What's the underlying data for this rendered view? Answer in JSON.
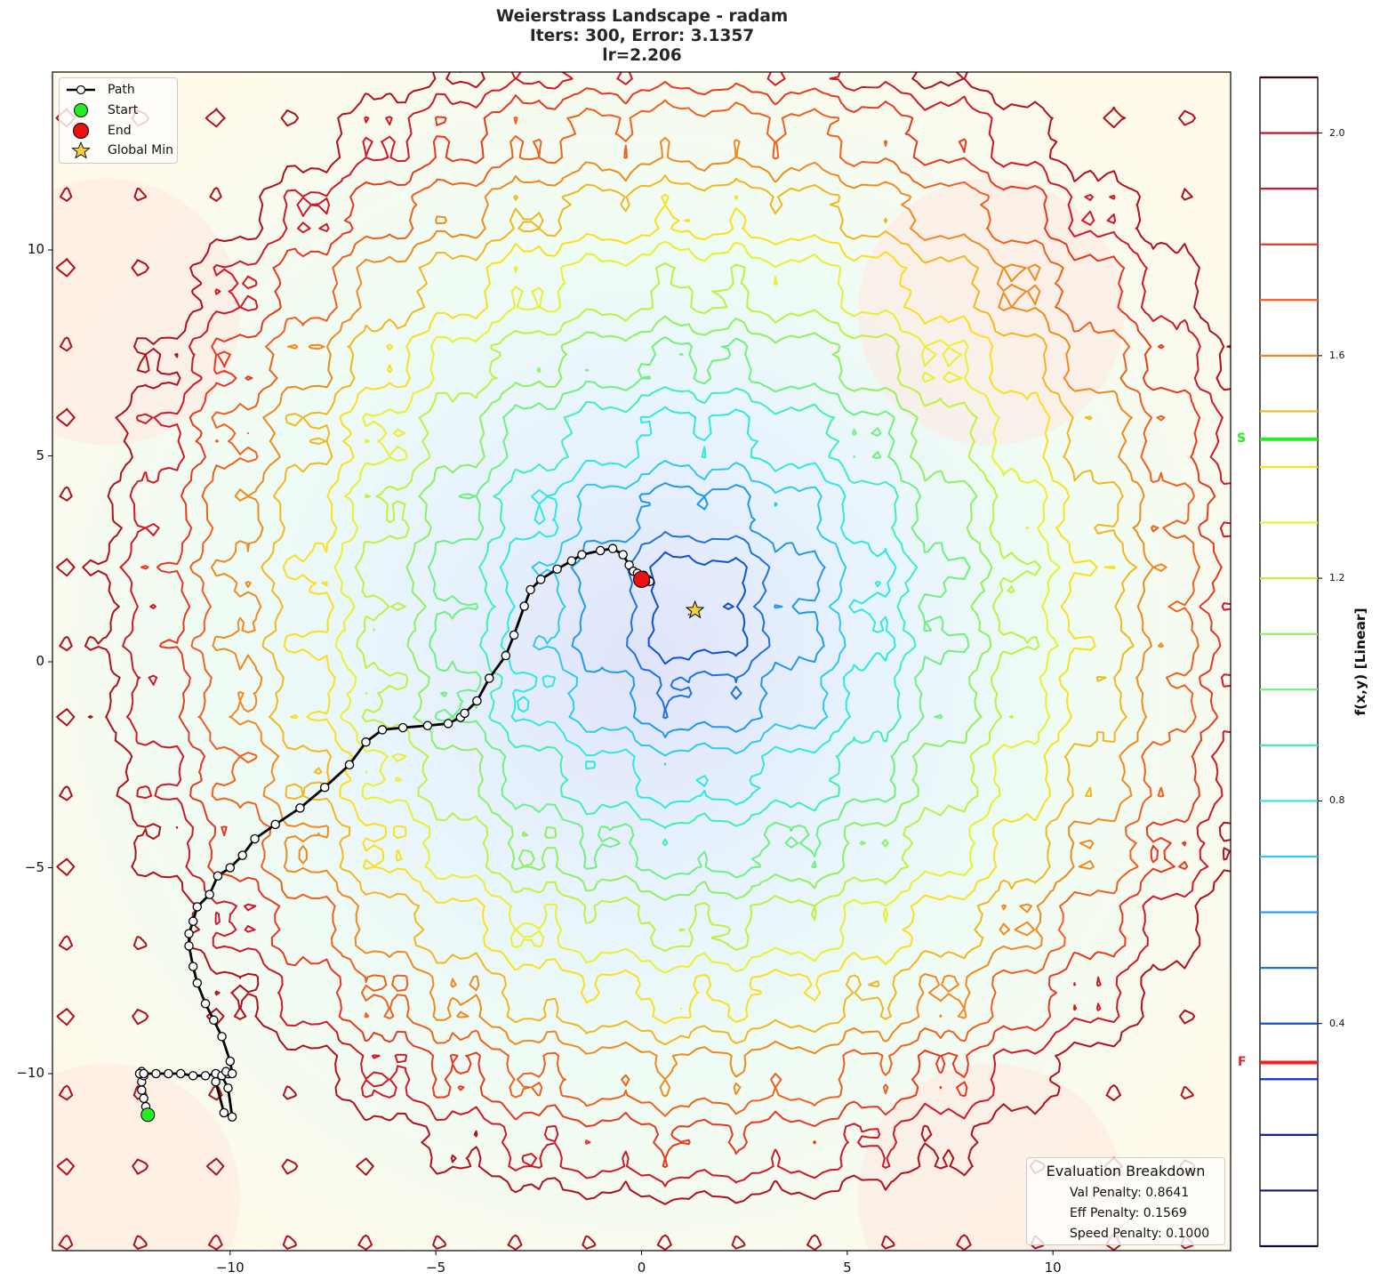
{
  "chart_data": {
    "type": "contour",
    "title": "Weierstrass Landscape - radam",
    "subtitle_lines": [
      "Iters: 300, Error: 3.1357",
      "lr=2.206"
    ],
    "xlabel": "",
    "ylabel": "",
    "xlim": [
      -14.3,
      14.3
    ],
    "ylim": [
      -14.3,
      14.3
    ],
    "xticks": [
      -10,
      -5,
      0,
      5,
      10
    ],
    "yticks": [
      -10,
      -5,
      0,
      5,
      10
    ],
    "xtick_labels": [
      "−10",
      "−5",
      "0",
      "5",
      "10"
    ],
    "ytick_labels": [
      "10",
      "5",
      "0",
      "−5",
      "−10"
    ],
    "grid": false,
    "colorbar": {
      "label": "f(x,y) [Linear]",
      "range": [
        0.0,
        2.1
      ],
      "ticks": [
        2.0,
        1.6,
        1.2,
        0.8,
        0.4
      ],
      "tick_labels": [
        "2.0",
        "1.6",
        "1.2",
        "0.8",
        "0.4"
      ],
      "levels": [
        2.1,
        2.0,
        1.9,
        1.8,
        1.7,
        1.6,
        1.5,
        1.4,
        1.3,
        1.2,
        1.1,
        1.0,
        0.9,
        0.8,
        0.7,
        0.6,
        0.5,
        0.4,
        0.3,
        0.2,
        0.1,
        0.0
      ],
      "level_colors": [
        "#3a0a0a",
        "#b01020",
        "#d0182a",
        "#e83820",
        "#f06020",
        "#f08a20",
        "#f0b820",
        "#f8e020",
        "#e8f030",
        "#c0f040",
        "#90f060",
        "#70f080",
        "#40f0b0",
        "#30e8e0",
        "#30c8f0",
        "#2098f0",
        "#2070e0",
        "#1050d8",
        "#1030c0",
        "#1020a0",
        "#101880",
        "#0a0a40"
      ],
      "start_marker": {
        "label": "S",
        "value": 1.45,
        "color": "#22ee22"
      },
      "final_marker": {
        "label": "F",
        "value": 0.33,
        "color": "#ee2222"
      }
    },
    "legend": {
      "position": "upper left",
      "entries": [
        "Path",
        "Start",
        "End",
        "Global Min"
      ]
    },
    "start": {
      "x": -12.0,
      "y": -11.0
    },
    "end": {
      "x": 0.0,
      "y": 2.0
    },
    "global_min": {
      "x": 1.3,
      "y": 1.25
    },
    "path": {
      "x": [
        -12.0,
        -12.05,
        -12.1,
        -12.15,
        -12.15,
        -12.1,
        -12.1,
        -12.15,
        -12.2,
        -12.1,
        -11.8,
        -11.5,
        -11.2,
        -10.9,
        -10.6,
        -10.35,
        -10.2,
        -10.05,
        -9.95,
        -10.15,
        -10.35,
        -10.05,
        -10.1,
        -9.95,
        -10.0,
        -10.2,
        -10.4,
        -10.6,
        -10.8,
        -10.9,
        -11.0,
        -11.0,
        -10.9,
        -10.8,
        -10.5,
        -10.3,
        -10.0,
        -9.7,
        -9.4,
        -8.9,
        -8.3,
        -7.7,
        -7.1,
        -6.7,
        -6.3,
        -5.8,
        -5.2,
        -4.7,
        -4.4,
        -4.3,
        -4.0,
        -3.7,
        -3.3,
        -3.1,
        -2.85,
        -2.7,
        -2.45,
        -2.05,
        -1.7,
        -1.45,
        -1.0,
        -0.7,
        -0.45,
        -0.3,
        -0.2,
        -0.1,
        0.05,
        0.15,
        0.2,
        0.1,
        0.0
      ],
      "y": [
        -11.0,
        -10.8,
        -10.6,
        -10.4,
        -10.2,
        -10.05,
        -10.0,
        -9.95,
        -10.0,
        -10.0,
        -10.0,
        -10.0,
        -10.0,
        -10.05,
        -10.05,
        -10.0,
        -10.05,
        -10.35,
        -11.05,
        -10.95,
        -10.2,
        -10.0,
        -9.95,
        -10.0,
        -9.7,
        -9.1,
        -8.7,
        -8.3,
        -7.8,
        -7.4,
        -6.9,
        -6.6,
        -6.3,
        -5.95,
        -5.65,
        -5.2,
        -5.0,
        -4.7,
        -4.3,
        -3.95,
        -3.55,
        -3.05,
        -2.5,
        -1.95,
        -1.65,
        -1.6,
        -1.55,
        -1.5,
        -1.35,
        -1.25,
        -0.95,
        -0.4,
        0.15,
        0.65,
        1.35,
        1.75,
        2.0,
        2.25,
        2.45,
        2.6,
        2.7,
        2.75,
        2.6,
        2.35,
        2.2,
        2.15,
        2.1,
        2.0,
        1.95,
        1.95,
        2.0
      ]
    }
  },
  "legend": {
    "path_label": "Path",
    "start_label": "Start",
    "end_label": "End",
    "globalmin_label": "Global Min"
  },
  "eval_box": {
    "heading": "Evaluation Breakdown",
    "val_penalty": "Val Penalty: 0.8641",
    "eff_penalty": "Eff Penalty: 0.1569",
    "speed_penalty": "Speed Penalty: 0.1000"
  },
  "colors": {
    "path": "#000000",
    "start": "#22ee22",
    "end": "#ee1111",
    "global_min": "#f5d23a"
  }
}
